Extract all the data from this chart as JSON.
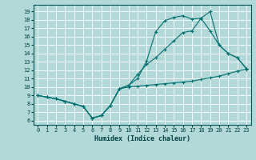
{
  "xlabel": "Humidex (Indice chaleur)",
  "bg_color": "#b2d8d8",
  "grid_color": "#ffffff",
  "line_color": "#007070",
  "xlim": [
    -0.5,
    23.5
  ],
  "ylim": [
    5.5,
    19.8
  ],
  "yticks": [
    6,
    7,
    8,
    9,
    10,
    11,
    12,
    13,
    14,
    15,
    16,
    17,
    18,
    19
  ],
  "xticks": [
    0,
    1,
    2,
    3,
    4,
    5,
    6,
    7,
    8,
    9,
    10,
    11,
    12,
    13,
    14,
    15,
    16,
    17,
    18,
    19,
    20,
    21,
    22,
    23
  ],
  "line1_x": [
    0,
    1,
    2,
    3,
    4,
    5,
    6,
    7,
    8,
    9,
    10,
    11,
    12,
    13,
    14,
    15,
    16,
    17,
    18,
    19,
    20,
    21,
    22,
    23
  ],
  "line1_y": [
    9.0,
    8.8,
    8.6,
    8.3,
    8.0,
    7.7,
    6.3,
    6.6,
    7.8,
    9.8,
    10.0,
    10.1,
    10.2,
    10.3,
    10.4,
    10.5,
    10.6,
    10.7,
    10.9,
    11.1,
    11.3,
    11.6,
    11.9,
    12.1
  ],
  "line2_x": [
    0,
    1,
    2,
    3,
    4,
    5,
    6,
    7,
    8,
    9,
    10,
    11,
    12,
    13,
    14,
    15,
    16,
    17,
    18,
    19,
    20,
    21,
    22,
    23
  ],
  "line2_y": [
    9.0,
    8.8,
    8.6,
    8.3,
    8.0,
    7.7,
    6.3,
    6.6,
    7.8,
    9.8,
    10.2,
    11.0,
    13.1,
    16.6,
    17.9,
    18.3,
    18.5,
    18.1,
    18.2,
    19.0,
    15.0,
    14.0,
    13.5,
    12.2
  ],
  "line3_x": [
    0,
    1,
    2,
    3,
    4,
    5,
    6,
    7,
    8,
    9,
    10,
    11,
    12,
    13,
    14,
    15,
    16,
    17,
    18,
    19,
    20,
    21,
    22,
    23
  ],
  "line3_y": [
    9.0,
    8.8,
    8.6,
    8.3,
    8.0,
    7.7,
    6.3,
    6.6,
    7.8,
    9.8,
    10.2,
    11.5,
    12.7,
    13.5,
    14.5,
    15.5,
    16.5,
    16.7,
    18.2,
    16.7,
    15.0,
    14.0,
    13.5,
    12.2
  ]
}
